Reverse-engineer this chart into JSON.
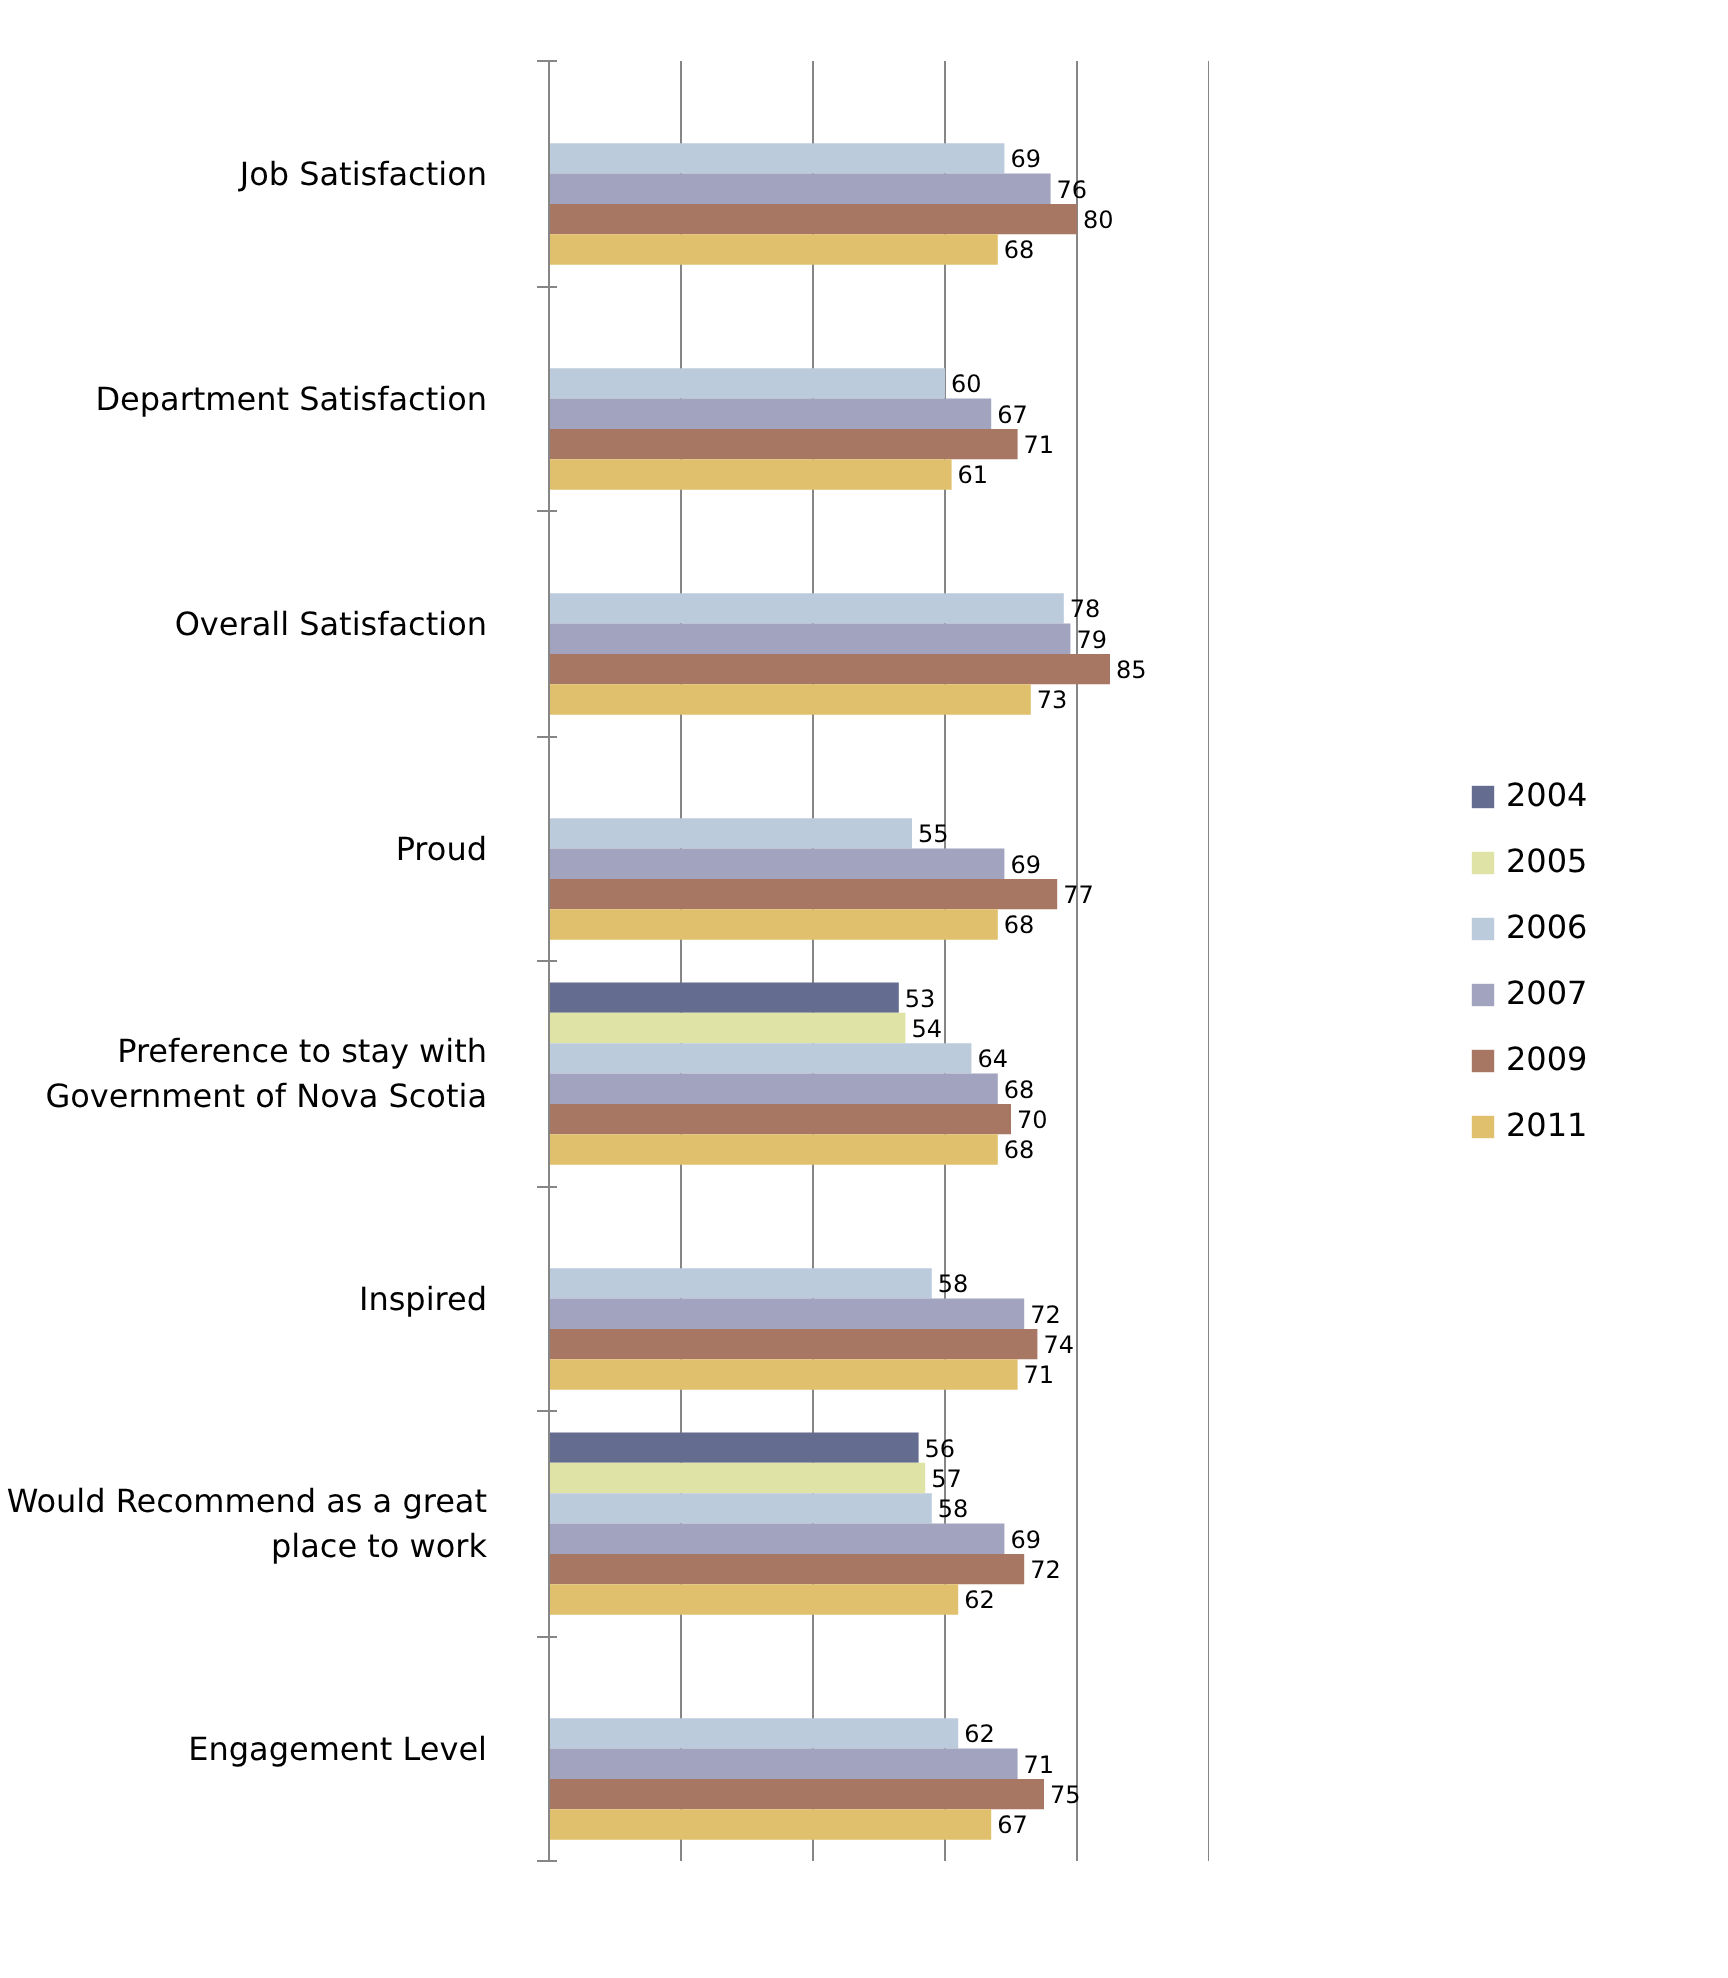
{
  "chart_data": {
    "type": "bar",
    "orientation": "horizontal",
    "categories": [
      "Job Satisfaction",
      "Department Satisfaction",
      "Overall Satisfaction",
      "Proud",
      "Preference to stay with Government of Nova Scotia",
      "Inspired",
      "Would Recommend as a great place to work",
      "Engagement Level"
    ],
    "series": [
      {
        "name": "2004",
        "color": "#646d8f",
        "values": [
          null,
          null,
          null,
          null,
          53,
          null,
          56,
          null
        ]
      },
      {
        "name": "2005",
        "color": "#dfe3a5",
        "values": [
          null,
          null,
          null,
          null,
          54,
          null,
          57,
          null
        ]
      },
      {
        "name": "2006",
        "color": "#bccbdb",
        "values": [
          69,
          60,
          78,
          55,
          64,
          58,
          58,
          62
        ]
      },
      {
        "name": "2007",
        "color": "#a2a4bf",
        "values": [
          76,
          67,
          79,
          69,
          68,
          72,
          69,
          71
        ]
      },
      {
        "name": "2009",
        "color": "#a87763",
        "values": [
          80,
          71,
          85,
          77,
          70,
          74,
          72,
          75
        ]
      },
      {
        "name": "2011",
        "color": "#e0c06d",
        "values": [
          68,
          61,
          73,
          68,
          68,
          71,
          62,
          67
        ]
      }
    ],
    "xlim": [
      0,
      100
    ],
    "xticks": [
      {
        "value": 0,
        "label": null
      },
      {
        "value": 20,
        "label": null
      },
      {
        "value": 40,
        "label": null
      },
      {
        "value": 60,
        "label": null
      },
      {
        "value": 80,
        "label": null
      },
      {
        "value": 100,
        "label": null
      }
    ],
    "grid": "x",
    "legend": "right",
    "tick_labels": "y",
    "data_labels": true
  }
}
